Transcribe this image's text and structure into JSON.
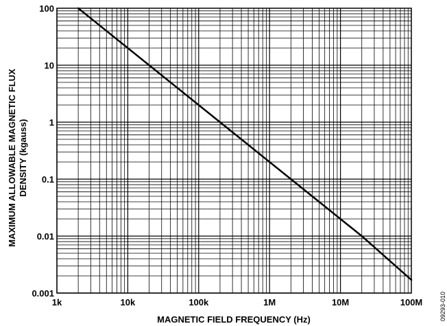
{
  "chart_data": {
    "type": "line",
    "xlabel": "MAGNETIC FIELD FREQUENCY (Hz)",
    "ylabel_line1": "MAXIMUM ALLOWABLE MAGNETIC FLUX",
    "ylabel_line2": "DENSITY (kgauss)",
    "x_scale": "log",
    "y_scale": "log",
    "xlim": [
      1000,
      100000000
    ],
    "ylim": [
      0.001,
      100
    ],
    "x_ticks": [
      {
        "value": 1000,
        "label": "1k"
      },
      {
        "value": 10000,
        "label": "10k"
      },
      {
        "value": 100000,
        "label": "100k"
      },
      {
        "value": 1000000,
        "label": "1M"
      },
      {
        "value": 10000000,
        "label": "10M"
      },
      {
        "value": 100000000,
        "label": "100M"
      }
    ],
    "y_ticks": [
      {
        "value": 0.001,
        "label": "0.001"
      },
      {
        "value": 0.01,
        "label": "0.01"
      },
      {
        "value": 0.1,
        "label": "0.1"
      },
      {
        "value": 1,
        "label": "1"
      },
      {
        "value": 10,
        "label": "10"
      },
      {
        "value": 100,
        "label": "100"
      }
    ],
    "grid": true,
    "minor_grid": true,
    "series": [
      {
        "x": [
          2000,
          20000,
          200000,
          2000000,
          20000000,
          100000000
        ],
        "y": [
          100,
          10,
          1,
          0.1,
          0.01,
          0.0017
        ]
      }
    ],
    "line_color": "#000000"
  },
  "figure_id": "09293-010"
}
